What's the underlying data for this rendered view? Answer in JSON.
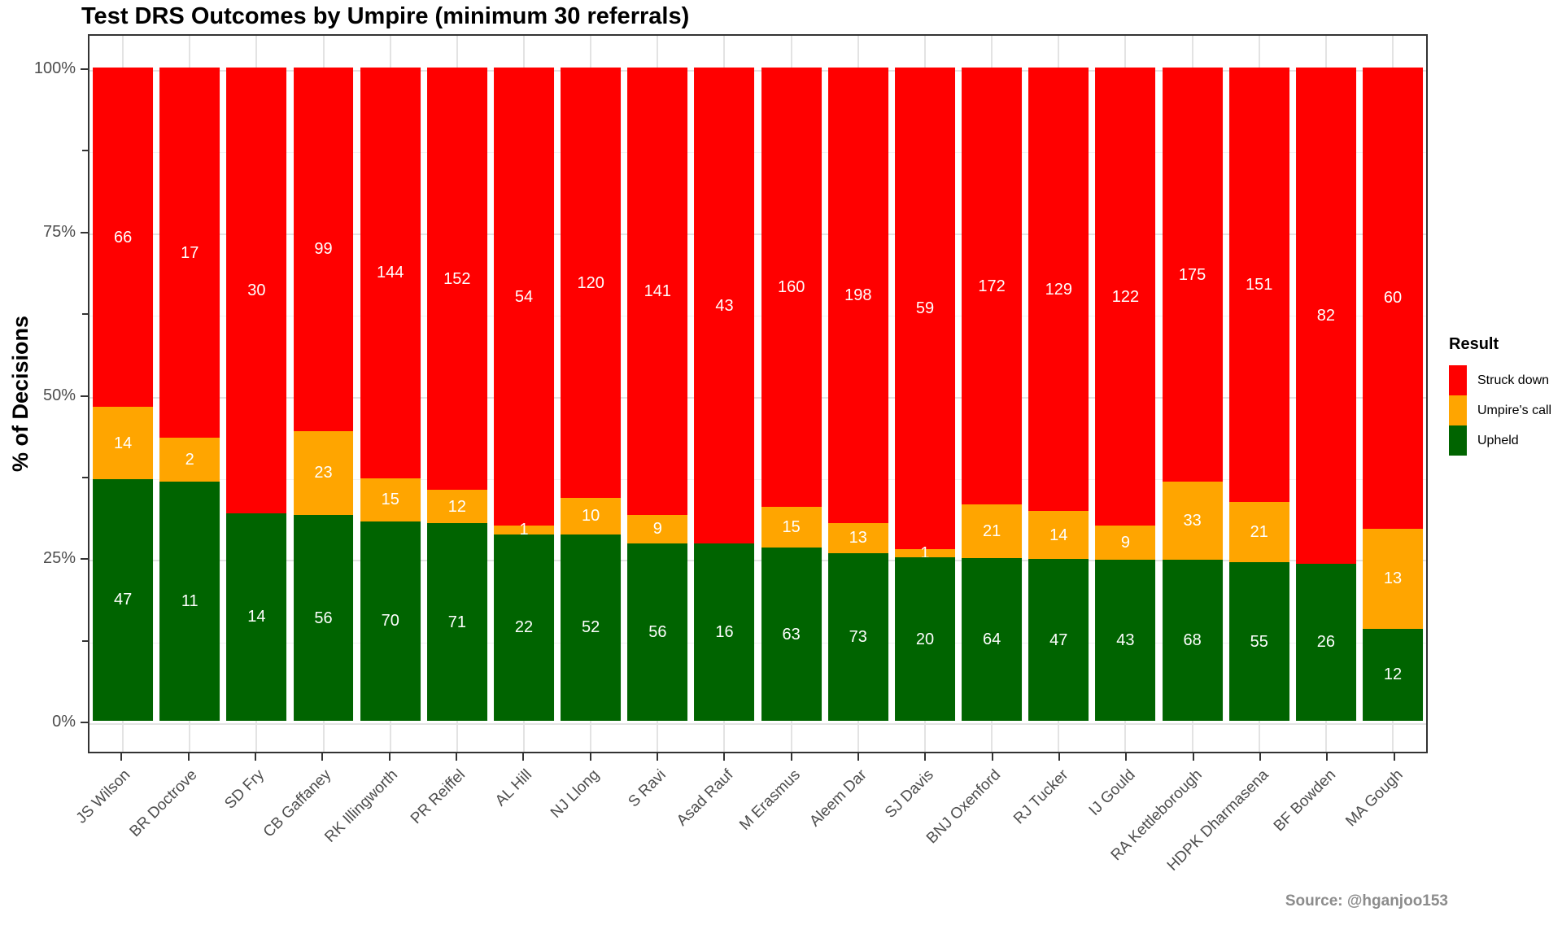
{
  "title": "Test DRS Outcomes by Umpire (minimum 30 referrals)",
  "source": "Source: @hganjoo153",
  "colors": {
    "struck_down": "#FF0000",
    "umpires_call": "#FFA500",
    "upheld": "#006400",
    "grid_major": "#e3e3e3",
    "grid_minor": "#f1f1f1",
    "panel_border": "#333333",
    "tick_text": "#4d4d4d",
    "source_text": "#8c8c8c"
  },
  "chart_data": {
    "type": "bar",
    "subtype": "stacked-percent",
    "title": "Test DRS Outcomes by Umpire (minimum 30 referrals)",
    "xlabel": "",
    "ylabel": "% of Decisions",
    "ylim": [
      0,
      100
    ],
    "y_major_ticks": [
      {
        "value": 0,
        "label": "0%"
      },
      {
        "value": 25,
        "label": "25%"
      },
      {
        "value": 50,
        "label": "50%"
      },
      {
        "value": 75,
        "label": "75%"
      },
      {
        "value": 100,
        "label": "100%"
      }
    ],
    "y_minor_ticks": [
      12.5,
      37.5,
      62.5,
      87.5
    ],
    "grid": "on",
    "legend": {
      "title": "Result",
      "position": "right",
      "entries": [
        {
          "label": "Struck down",
          "color": "#FF0000"
        },
        {
          "label": "Umpire's call",
          "color": "#FFA500"
        },
        {
          "label": "Upheld",
          "color": "#006400"
        }
      ]
    },
    "categories": [
      "JS Wilson",
      "BR Doctrove",
      "SD Fry",
      "CB Gaffaney",
      "RK Illingworth",
      "PR Reiffel",
      "AL Hill",
      "NJ Llong",
      "S Ravi",
      "Asad Rauf",
      "M Erasmus",
      "Aleem Dar",
      "SJ Davis",
      "BNJ Oxenford",
      "RJ Tucker",
      "IJ Gould",
      "RA Kettleborough",
      "HDPK Dharmasena",
      "BF Bowden",
      "MA Gough"
    ],
    "series": [
      {
        "name": "Upheld",
        "color": "#006400",
        "values": [
          47,
          11,
          14,
          56,
          70,
          71,
          22,
          52,
          56,
          16,
          63,
          73,
          20,
          64,
          47,
          43,
          68,
          55,
          26,
          12
        ]
      },
      {
        "name": "Umpire's call",
        "color": "#FFA500",
        "values": [
          14,
          2,
          0,
          23,
          15,
          12,
          1,
          10,
          9,
          0,
          15,
          13,
          1,
          21,
          14,
          9,
          33,
          21,
          0,
          13
        ]
      },
      {
        "name": "Struck down",
        "color": "#FF0000",
        "values": [
          66,
          17,
          30,
          99,
          144,
          152,
          54,
          120,
          141,
          43,
          160,
          198,
          59,
          172,
          129,
          122,
          175,
          151,
          82,
          60
        ]
      }
    ]
  }
}
